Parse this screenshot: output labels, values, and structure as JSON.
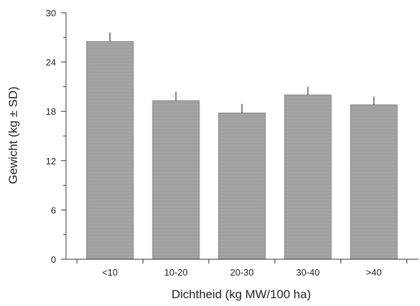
{
  "chart_data": {
    "type": "bar",
    "categories": [
      "<10",
      "10-20",
      "20-30",
      "30-40",
      ">40"
    ],
    "values": [
      26.5,
      19.3,
      17.8,
      20.0,
      18.8
    ],
    "errors": [
      1.1,
      1.1,
      1.1,
      1.0,
      1.0
    ],
    "yticks": [
      "0",
      "6",
      "12",
      "18",
      "24",
      "30"
    ],
    "ylim": [
      0,
      30
    ],
    "xlabel": "Dichtheid (kg MW/100 ha)",
    "ylabel": "Gewicht (kg ± SD)",
    "grid": false,
    "bar_color": "#a6a6a6"
  }
}
